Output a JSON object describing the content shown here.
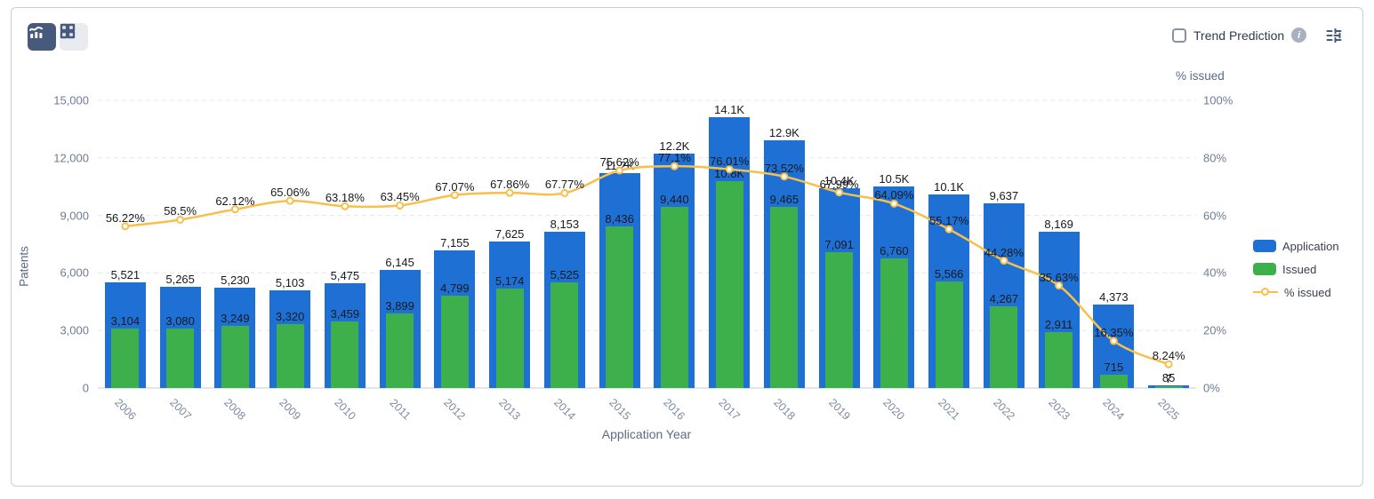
{
  "toolbar": {
    "trend_prediction_label": "Trend Prediction",
    "trend_prediction_checked": false,
    "info_icon_glyph": "i"
  },
  "colors": {
    "application_bar": "#1f70d4",
    "issued_bar": "#3eb04b",
    "pct_line": "#f8bf4a",
    "active_button_bg": "#47597d",
    "grid_line": "#e3e7ee",
    "axis_line": "#d9dde4"
  },
  "chart_data": {
    "type": "bar",
    "title": "",
    "xlabel": "Application Year",
    "ylabel_left": "Patents",
    "ylabel_right": "% issued",
    "ylim_left": [
      0,
      15000
    ],
    "ylim_right": [
      0,
      100
    ],
    "grid": "dashed-horizontal",
    "legend_position": "right",
    "categories": [
      "2006",
      "2007",
      "2008",
      "2009",
      "2010",
      "2011",
      "2012",
      "2013",
      "2014",
      "2015",
      "2016",
      "2017",
      "2018",
      "2019",
      "2020",
      "2021",
      "2022",
      "2023",
      "2024",
      "2025"
    ],
    "yticks_left": [
      {
        "label": "15,000",
        "value": 15000
      },
      {
        "label": "12,000",
        "value": 12000
      },
      {
        "label": "9,000",
        "value": 9000
      },
      {
        "label": "6,000",
        "value": 6000
      },
      {
        "label": "3,000",
        "value": 3000
      },
      {
        "label": "0",
        "value": 0
      }
    ],
    "yticks_right": [
      {
        "label": "100%",
        "value": 100
      },
      {
        "label": "80%",
        "value": 80
      },
      {
        "label": "60%",
        "value": 60
      },
      {
        "label": "40%",
        "value": 40
      },
      {
        "label": "20%",
        "value": 20
      },
      {
        "label": "0%",
        "value": 0
      }
    ],
    "series": [
      {
        "name": "Application",
        "type": "bar",
        "axis": "left",
        "color": "#1f70d4",
        "values": [
          5521,
          5265,
          5230,
          5103,
          5475,
          6145,
          7155,
          7625,
          8153,
          11200,
          12200,
          14100,
          12900,
          10400,
          10500,
          10100,
          9637,
          8169,
          4373,
          85
        ],
        "labels": [
          "5,521",
          "5,265",
          "5,230",
          "5,103",
          "5,475",
          "6,145",
          "7,155",
          "7,625",
          "8,153",
          "11.2K",
          "12.2K",
          "14.1K",
          "12.9K",
          "10.4K",
          "10.5K",
          "10.1K",
          "9,637",
          "8,169",
          "4,373",
          "85"
        ]
      },
      {
        "name": "Issued",
        "type": "bar",
        "axis": "left",
        "color": "#3eb04b",
        "values": [
          3104,
          3080,
          3249,
          3320,
          3459,
          3899,
          4799,
          5174,
          5525,
          8436,
          9440,
          10800,
          9465,
          7091,
          6760,
          5566,
          4267,
          2911,
          715,
          7
        ],
        "labels": [
          "3,104",
          "3,080",
          "3,249",
          "3,320",
          "3,459",
          "3,899",
          "4,799",
          "5,174",
          "5,525",
          "8,436",
          "9,440",
          "10.8K",
          "9,465",
          "7,091",
          "6,760",
          "5,566",
          "4,267",
          "2,911",
          "715",
          "7"
        ]
      },
      {
        "name": "% issued",
        "type": "line",
        "axis": "right",
        "color": "#f8bf4a",
        "values": [
          56.22,
          58.5,
          62.12,
          65.06,
          63.18,
          63.45,
          67.07,
          67.86,
          67.77,
          75.62,
          77.1,
          76.01,
          73.52,
          67.99,
          64.09,
          55.17,
          44.28,
          35.63,
          16.35,
          8.24
        ],
        "labels": [
          "56.22%",
          "58.5%",
          "62.12%",
          "65.06%",
          "63.18%",
          "63.45%",
          "67.07%",
          "67.86%",
          "67.77%",
          "75.62%",
          "77.1%",
          "76.01%",
          "73.52%",
          "67.99%",
          "64.09%",
          "55.17%",
          "44.28%",
          "35.63%",
          "16.35%",
          "8.24%"
        ]
      }
    ]
  }
}
